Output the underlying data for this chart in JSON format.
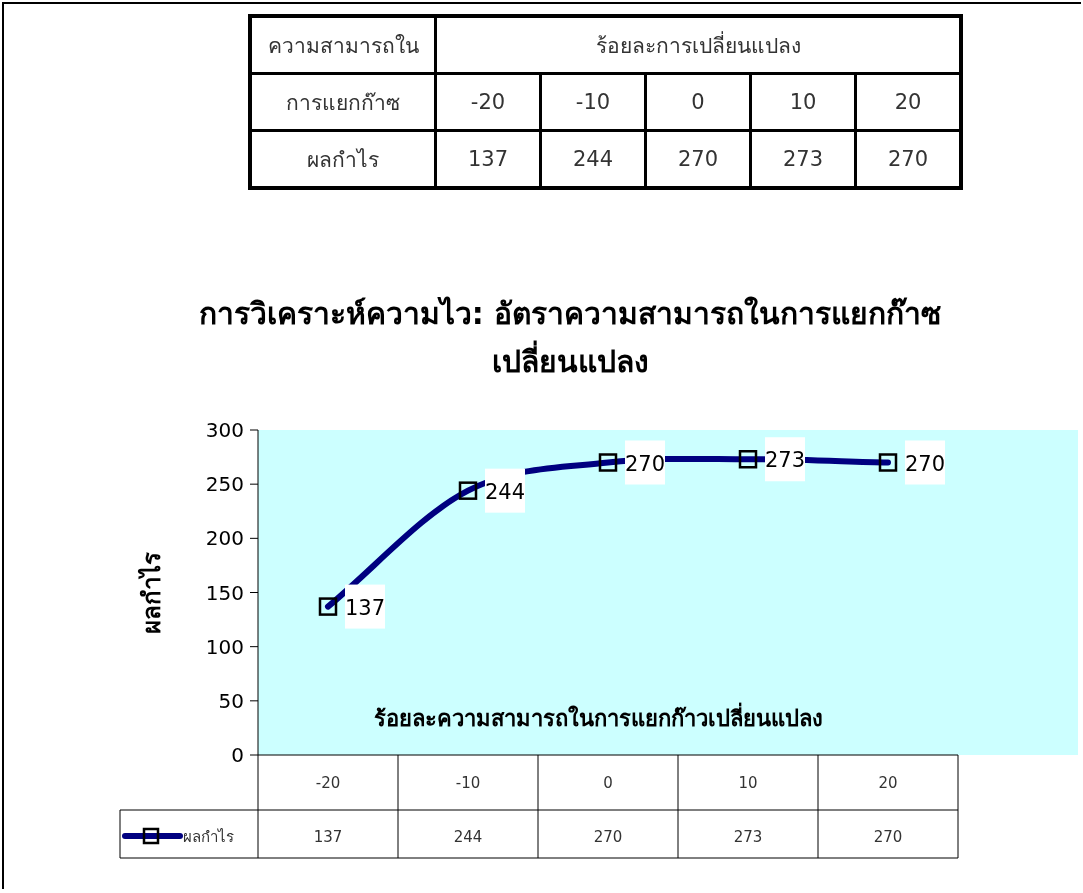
{
  "chart_data": {
    "type": "line",
    "title": "การวิเคราะห์ความไว: อัตราความสามารถในการแยกก๊าซเปลี่ยนแปลง",
    "xlabel": "ร้อยละความสามารถในการแยกก๊าวเปลี่ยนแปลง",
    "ylabel": "ผลกำไร",
    "categories": [
      "-20",
      "-10",
      "0",
      "10",
      "20"
    ],
    "series": [
      {
        "name": "ผลกำไร",
        "color": "#000080",
        "values": [
          137,
          244,
          270,
          273,
          270
        ],
        "value_labels": [
          "137",
          "244",
          "270",
          "273",
          "270"
        ]
      }
    ],
    "ylim": [
      0,
      300
    ],
    "yticks": [
      0,
      50,
      100,
      150,
      200,
      250,
      300
    ],
    "data_labels": true,
    "marker": "square",
    "line_style": "solid",
    "legend": "bottom",
    "grid": false,
    "annotations": [
      "ความสามารถใน",
      "การแยกก๊าซ",
      "ร้อยละการเปลี่ยนแปลง"
    ]
  }
}
